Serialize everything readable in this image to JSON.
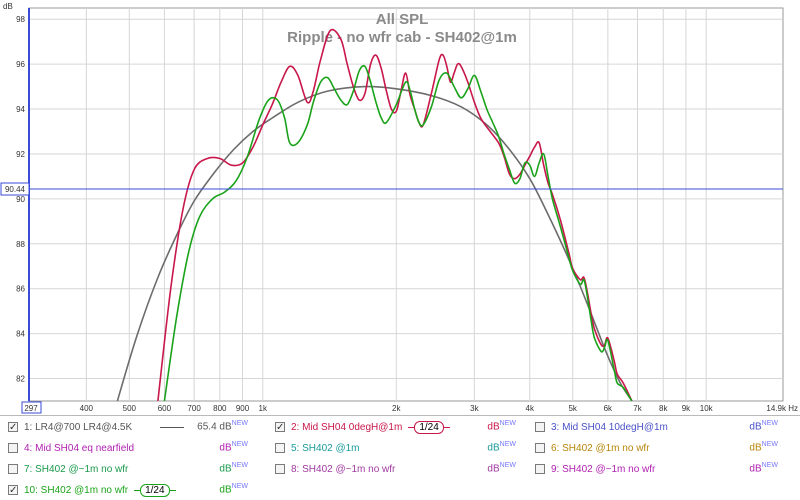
{
  "chart_data": {
    "type": "line",
    "title": "All SPL",
    "subtitle": "Ripple - no wfr cab - SH402@1m",
    "ylabel": "dB",
    "xunit": "Hz",
    "xscale": "log",
    "xlim": [
      297,
      14900
    ],
    "ylim": [
      81,
      98.5
    ],
    "grid": true,
    "x_ticks": [
      297,
      400,
      500,
      600,
      700,
      800,
      900,
      1000,
      2000,
      3000,
      4000,
      5000,
      6000,
      7000,
      8000,
      9000,
      10000,
      14900
    ],
    "x_tick_labels": [
      "297",
      "400",
      "500",
      "600",
      "700",
      "800",
      "900",
      "1k",
      "2k",
      "3k",
      "4k",
      "5k",
      "6k",
      "7k",
      "8k",
      "9k",
      "10k",
      "14.9k Hz"
    ],
    "y_ticks": [
      82,
      84,
      86,
      88,
      90,
      92,
      94,
      96,
      98
    ],
    "y_tick_labels": [
      "82",
      "84",
      "86",
      "88",
      "90",
      "92",
      "94",
      "96",
      "98"
    ],
    "cursor": {
      "y": 90.44,
      "label": "90.44"
    },
    "series": [
      {
        "name": "2: Mid SH04 0degH@1m",
        "color": "#c8174a",
        "width": 1.6,
        "x": [
          580,
          620,
          660,
          700,
          750,
          800,
          850,
          900,
          950,
          1000,
          1050,
          1100,
          1150,
          1200,
          1260,
          1300,
          1350,
          1420,
          1500,
          1550,
          1600,
          1650,
          1700,
          1750,
          1800,
          1850,
          1900,
          1950,
          2000,
          2050,
          2100,
          2150,
          2200,
          2250,
          2300,
          2400,
          2500,
          2550,
          2600,
          2650,
          2700,
          2750,
          2800,
          2900,
          3000,
          3100,
          3200,
          3400,
          3500,
          3600,
          3700,
          3800,
          3900,
          4000,
          4100,
          4200,
          4300,
          4400,
          4500,
          4700,
          4900,
          5000,
          5200,
          5300,
          5400,
          5500,
          5600,
          5800,
          5900,
          6000,
          6200,
          6300,
          6500,
          6800
        ],
        "y": [
          81,
          86,
          89.5,
          91.3,
          91.8,
          91.8,
          91.5,
          91.6,
          92.3,
          93.3,
          94.2,
          95.2,
          95.9,
          95.5,
          94.3,
          94.8,
          96.2,
          97.5,
          97.1,
          96.0,
          95.0,
          94.4,
          94.7,
          96.0,
          96.4,
          95.8,
          94.8,
          94.0,
          93.9,
          94.8,
          95.6,
          94.6,
          94.0,
          93.4,
          93.3,
          94.7,
          96.2,
          96.4,
          95.9,
          95.2,
          95.6,
          96.0,
          95.9,
          95.2,
          94.3,
          93.6,
          93.2,
          92.5,
          91.9,
          91.1,
          90.9,
          91.1,
          91.5,
          91.9,
          92.3,
          92.5,
          91.5,
          90.7,
          90.2,
          89.0,
          87.6,
          86.9,
          86.4,
          86.5,
          85.8,
          84.9,
          84.2,
          83.5,
          83.5,
          83.8,
          82.8,
          82.2,
          81.8,
          81
        ],
        "line_fill": "#c8174a"
      },
      {
        "name": "10: SH402 @1m no wfr",
        "color": "#1aa31a",
        "width": 1.6,
        "x": [
          600,
          640,
          680,
          720,
          770,
          820,
          870,
          920,
          980,
          1030,
          1080,
          1120,
          1150,
          1200,
          1260,
          1300,
          1350,
          1400,
          1450,
          1500,
          1550,
          1600,
          1650,
          1700,
          1750,
          1800,
          1850,
          1900,
          2000,
          2100,
          2150,
          2200,
          2250,
          2300,
          2400,
          2500,
          2600,
          2700,
          2800,
          2900,
          3000,
          3100,
          3200,
          3300,
          3400,
          3500,
          3600,
          3700,
          3800,
          3900,
          4000,
          4100,
          4200,
          4300,
          4400,
          4500,
          4700,
          4900,
          5000,
          5200,
          5300,
          5400,
          5500,
          5600,
          5800,
          5900,
          6000,
          6200,
          6300,
          6500,
          6800
        ],
        "y": [
          81,
          84.8,
          87.6,
          89.2,
          90.0,
          90.3,
          90.8,
          91.8,
          93.5,
          94.4,
          94.4,
          93.6,
          92.5,
          92.5,
          93.3,
          94.3,
          95.2,
          95.4,
          94.9,
          94.4,
          94.2,
          94.8,
          95.7,
          95.9,
          95.2,
          94.3,
          93.6,
          93.4,
          94.2,
          95.2,
          94.8,
          94.0,
          93.4,
          93.3,
          94.1,
          95.3,
          95.6,
          95.0,
          94.5,
          94.9,
          95.5,
          94.8,
          94.0,
          93.4,
          92.8,
          92.0,
          91.3,
          90.7,
          90.9,
          91.6,
          91.5,
          91.0,
          91.6,
          92.0,
          91.0,
          90.0,
          88.7,
          87.4,
          86.8,
          86.2,
          86.4,
          85.6,
          84.6,
          83.8,
          83.2,
          83.4,
          83.7,
          82.4,
          81.8,
          81.6,
          81
        ],
        "line_fill": "#1aa31a"
      },
      {
        "name": "1: LR4@700 LR4@4.5K",
        "color": "#6c6c6c",
        "width": 1.6,
        "x": [
          470,
          520,
          580,
          640,
          700,
          780,
          860,
          950,
          1050,
          1200,
          1400,
          1700,
          2000,
          2400,
          2800,
          3200,
          3600,
          4000,
          4400,
          4800,
          5200,
          5600,
          6000,
          6400,
          6800
        ],
        "y": [
          81,
          83.9,
          86.5,
          88.4,
          89.9,
          91.2,
          92.2,
          93.0,
          93.6,
          94.3,
          94.8,
          95.0,
          94.9,
          94.6,
          94.1,
          93.3,
          92.2,
          90.9,
          89.3,
          87.7,
          86.1,
          84.5,
          83.0,
          81.8,
          81
        ],
        "line_fill": "#6c6c6c"
      }
    ]
  },
  "legend": {
    "rows": [
      [
        {
          "check": "✓",
          "label": "1: LR4@700 LR4@4.5K",
          "color": "#555555",
          "swatch": "line",
          "value": "65.4 dB",
          "new": "NEW",
          "dbcolor": "#555555"
        },
        {
          "check": "✓",
          "label": "2: Mid SH04 0degH@1m",
          "color": "#c8174a",
          "swatch": "smooth",
          "smooth": "1/24",
          "value": "dB",
          "new": "NEW",
          "dbcolor": "#c8174a"
        },
        {
          "check": "",
          "label": "3: Mid SH04 10degH@1m",
          "color": "#4a52c8",
          "swatch": "none",
          "value": "dB",
          "new": "NEW",
          "dbcolor": "#4a52c8"
        }
      ],
      [
        {
          "check": "",
          "label": "4: Mid SH04 eq nearfield",
          "color": "#b01fb0",
          "swatch": "none",
          "value": "dB",
          "new": "NEW",
          "dbcolor": "#b01fb0"
        },
        {
          "check": "",
          "label": "5: SH402 @1m",
          "color": "#1a9a9a",
          "swatch": "none",
          "value": "dB",
          "new": "NEW",
          "dbcolor": "#1a9a9a"
        },
        {
          "check": "",
          "label": "6: SH402 @1m no wfr",
          "color": "#b8860b",
          "swatch": "none",
          "value": "dB",
          "new": "NEW",
          "dbcolor": "#b8860b"
        }
      ],
      [
        {
          "check": "",
          "label": "7: SH402 @~1m no wfr",
          "color": "#1a9a4a",
          "swatch": "none",
          "value": "dB",
          "new": "NEW",
          "dbcolor": "#1a9a4a"
        },
        {
          "check": "",
          "label": "8: SH402 @~1m no wfr",
          "color": "#a03aa0",
          "swatch": "none",
          "value": "dB",
          "new": "NEW",
          "dbcolor": "#a03aa0"
        },
        {
          "check": "",
          "label": "9: SH402 @~1m no wfr",
          "color": "#b01fb0",
          "swatch": "none",
          "value": "dB",
          "new": "NEW",
          "dbcolor": "#b01fb0"
        }
      ],
      [
        {
          "check": "✓",
          "label": "10: SH402 @1m no wfr",
          "color": "#1aa31a",
          "swatch": "smooth",
          "smooth": "1/24",
          "value": "dB",
          "new": "NEW",
          "dbcolor": "#1aa31a"
        }
      ]
    ]
  }
}
